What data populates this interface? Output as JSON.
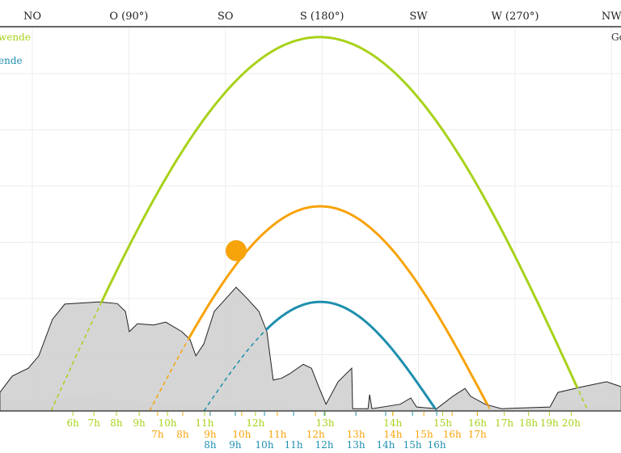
{
  "chart_data": {
    "type": "line",
    "title": "",
    "xlabel": "Azimuth",
    "ylabel": "Elevation",
    "xlim": [
      29.9,
      319.5
    ],
    "ylim": [
      0,
      68.3
    ],
    "grid": true,
    "direction_labels": [
      {
        "label": "NO",
        "az": 45
      },
      {
        "label": "O (90°)",
        "az": 90
      },
      {
        "label": "SO",
        "az": 135
      },
      {
        "label": "S (180°)",
        "az": 180
      },
      {
        "label": "SW",
        "az": 225
      },
      {
        "label": "W (270°)",
        "az": 270
      },
      {
        "label": "NW",
        "az": 315
      }
    ],
    "legend": {
      "placement": "top-left",
      "entries": [
        {
          "label": "wende",
          "color": "#a8d21a"
        },
        {
          "label": "ende",
          "color": "#1e8fae"
        }
      ],
      "right_entry": "Go"
    },
    "current_sun": {
      "az": 140,
      "el": 28.5,
      "color": "#f7a30a"
    },
    "series": [
      {
        "name": "summer-solstice",
        "color": "#a8d21a",
        "rise_az": 53.7,
        "set_az": 304,
        "peak_el": 66.5,
        "hours": [
          [
            "6h",
            63.9
          ],
          [
            "7h",
            73.7
          ],
          [
            "8h",
            84.2
          ],
          [
            "9h",
            94.8
          ],
          [
            "10h",
            108
          ],
          [
            "11h",
            125.3
          ],
          [
            "12h",
            149
          ],
          [
            "13h",
            181.5
          ],
          [
            "14h",
            213
          ],
          [
            "15h",
            236.3
          ],
          [
            "16h",
            252.5
          ],
          [
            "17h",
            265
          ],
          [
            "18h",
            276.3
          ],
          [
            "19h",
            286
          ],
          [
            "20h",
            296.2
          ]
        ]
      },
      {
        "name": "equinox",
        "color": "#f7a30a",
        "rise_az": 99.6,
        "set_az": 258.7,
        "peak_el": 36.4,
        "hours": [
          [
            "7h",
            103.4
          ],
          [
            "8h",
            115.1
          ],
          [
            "9h",
            127.9
          ],
          [
            "10h",
            142.6
          ],
          [
            "11h",
            159.2
          ],
          [
            "12h",
            177
          ],
          [
            "13h",
            195.8
          ],
          [
            "14h",
            213.1
          ],
          [
            "15h",
            227.5
          ],
          [
            "16h",
            240.7
          ],
          [
            "17h",
            252.4
          ]
        ]
      },
      {
        "name": "winter-solstice",
        "color": "#1e8fae",
        "rise_az": 125,
        "set_az": 233.5,
        "peak_el": 19.4,
        "hours": [
          [
            "8h",
            127.9
          ],
          [
            "9h",
            139.6
          ],
          [
            "10h",
            153.2
          ],
          [
            "11h",
            166.8
          ],
          [
            "12h",
            181.1
          ],
          [
            "13h",
            195.8
          ],
          [
            "14h",
            209.7
          ],
          [
            "15h",
            222.2
          ],
          [
            "16h",
            233.5
          ]
        ]
      }
    ],
    "horizon": [
      [
        29.9,
        3.3
      ],
      [
        35.6,
        6.2
      ],
      [
        43.1,
        7.6
      ],
      [
        48,
        9.8
      ],
      [
        54.4,
        16.3
      ],
      [
        60.1,
        19
      ],
      [
        75.9,
        19.4
      ],
      [
        84.6,
        19.1
      ],
      [
        88.4,
        17.7
      ],
      [
        90.2,
        14.1
      ],
      [
        94,
        15.5
      ],
      [
        101.6,
        15.3
      ],
      [
        107.2,
        15.8
      ],
      [
        114.7,
        14.1
      ],
      [
        118.5,
        12.7
      ],
      [
        121.2,
        9.8
      ],
      [
        124.9,
        11.9
      ],
      [
        129.8,
        17.7
      ],
      [
        135.5,
        20.1
      ],
      [
        140,
        22
      ],
      [
        144.9,
        20.1
      ],
      [
        150.6,
        17.7
      ],
      [
        154.3,
        14.1
      ],
      [
        157.3,
        5.5
      ],
      [
        161.1,
        5.8
      ],
      [
        164.9,
        6.6
      ],
      [
        171.3,
        8.3
      ],
      [
        175.1,
        7.6
      ],
      [
        178.8,
        4
      ],
      [
        181.9,
        1.2
      ],
      [
        187.5,
        5.2
      ],
      [
        193.9,
        7.6
      ],
      [
        194.3,
        0.4
      ],
      [
        201.5,
        0.4
      ],
      [
        202.2,
        2.9
      ],
      [
        203.3,
        0.4
      ],
      [
        216.5,
        1.2
      ],
      [
        221.4,
        2.3
      ],
      [
        224.1,
        0.7
      ],
      [
        233.5,
        0.4
      ],
      [
        241,
        2.6
      ],
      [
        246.7,
        4
      ],
      [
        249.3,
        2.6
      ],
      [
        256.1,
        1.2
      ],
      [
        263.7,
        0.4
      ],
      [
        286.3,
        0.7
      ],
      [
        290,
        3.3
      ],
      [
        301.4,
        4.3
      ],
      [
        312.7,
        5.2
      ],
      [
        319.5,
        4.3
      ]
    ]
  }
}
